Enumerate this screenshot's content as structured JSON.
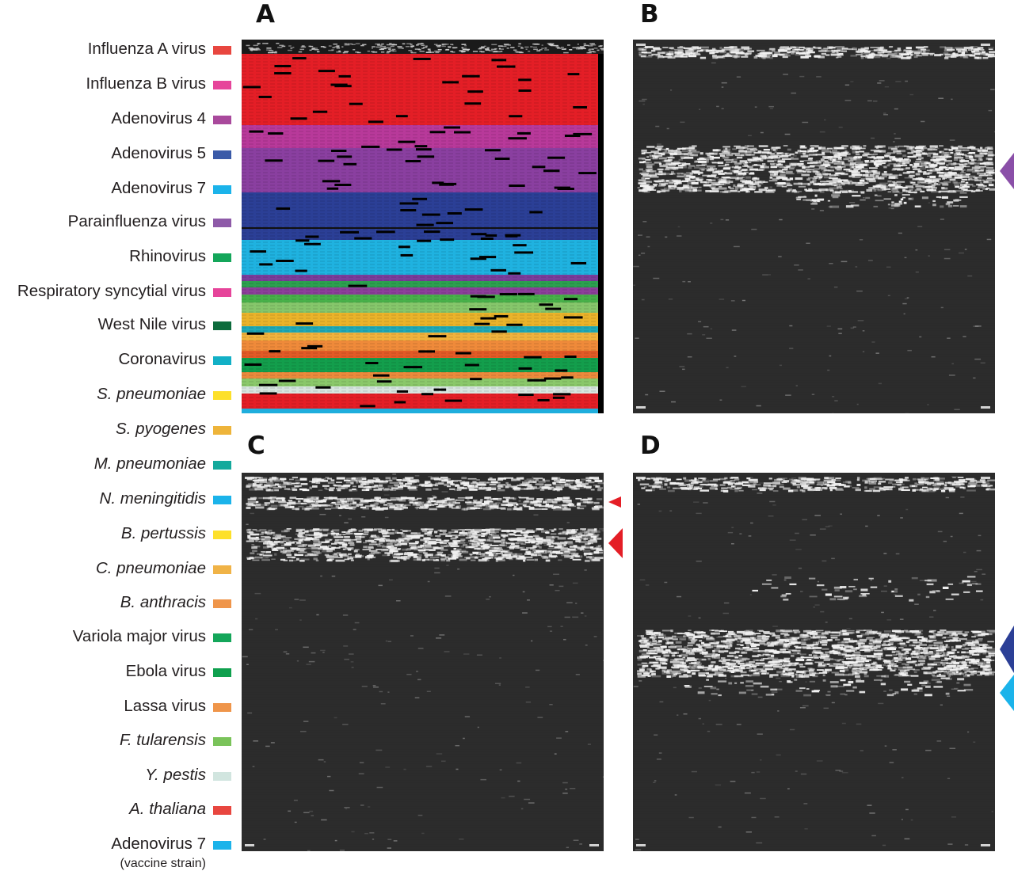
{
  "legend": [
    {
      "label": "Influenza A virus",
      "italic": false,
      "color": "#e8463f"
    },
    {
      "label": "Influenza B virus",
      "italic": false,
      "color": "#e6449a"
    },
    {
      "label": "Adenovirus 4",
      "italic": false,
      "color": "#a9499c"
    },
    {
      "label": "Adenovirus 5",
      "italic": false,
      "color": "#3a5aa8"
    },
    {
      "label": "Adenovirus 7",
      "italic": false,
      "color": "#1bb3ea"
    },
    {
      "label": "Parainfluenza virus",
      "italic": false,
      "color": "#8e5aa8"
    },
    {
      "label": "Rhinovirus",
      "italic": false,
      "color": "#14a65a"
    },
    {
      "label": "Respiratory syncytial virus",
      "italic": false,
      "color": "#e6449a"
    },
    {
      "label": "West Nile virus",
      "italic": false,
      "color": "#0d6b3c"
    },
    {
      "label": "Coronavirus",
      "italic": false,
      "color": "#12b0c6"
    },
    {
      "label": "S. pneumoniae",
      "italic": true,
      "color": "#fde02a"
    },
    {
      "label": "S. pyogenes",
      "italic": true,
      "color": "#eeb43a"
    },
    {
      "label": "M. pneumoniae",
      "italic": true,
      "color": "#14a99c"
    },
    {
      "label": "N. meningitidis",
      "italic": true,
      "color": "#1bb3ea"
    },
    {
      "label": "B. pertussis",
      "italic": true,
      "color": "#fde02a"
    },
    {
      "label": "C. pneumoniae",
      "italic": true,
      "color": "#f0b347"
    },
    {
      "label": "B. anthracis",
      "italic": true,
      "color": "#ef954a"
    },
    {
      "label": "Variola major virus",
      "italic": false,
      "color": "#14a65a"
    },
    {
      "label": "Ebola virus",
      "italic": false,
      "color": "#0fa04e"
    },
    {
      "label": "Lassa virus",
      "italic": false,
      "color": "#ef954a"
    },
    {
      "label": "F. tularensis",
      "italic": true,
      "color": "#7ac35a"
    },
    {
      "label": "Y. pestis",
      "italic": true,
      "color": "#d1e5df"
    },
    {
      "label": "A. thaliana",
      "italic": true,
      "color": "#e8463f"
    },
    {
      "label": "Adenovirus 7",
      "italic": false,
      "color": "#1bb3ea",
      "note": "(vaccine strain)"
    }
  ],
  "panels": {
    "a": {
      "letter": "A"
    },
    "b": {
      "letter": "B",
      "markers": [
        {
          "color": "#8a4fa8",
          "shape": "diamond",
          "band": "Adenovirus 4"
        }
      ]
    },
    "c": {
      "letter": "C",
      "markers": [
        {
          "color": "#e41e26",
          "shape": "left-triangle-small",
          "band": "Influenza A virus"
        },
        {
          "color": "#e41e26",
          "shape": "left-triangle",
          "band": "Influenza A virus"
        }
      ]
    },
    "d": {
      "letter": "D",
      "markers": [
        {
          "color": "#2b3f96",
          "shape": "diamond",
          "band": "Adenovirus 5"
        },
        {
          "color": "#1bb3ea",
          "shape": "diamond",
          "band": "Adenovirus 7"
        }
      ]
    }
  },
  "colors": {
    "panel_background": "#2b2b2b",
    "panel_a_border": "#000000"
  }
}
